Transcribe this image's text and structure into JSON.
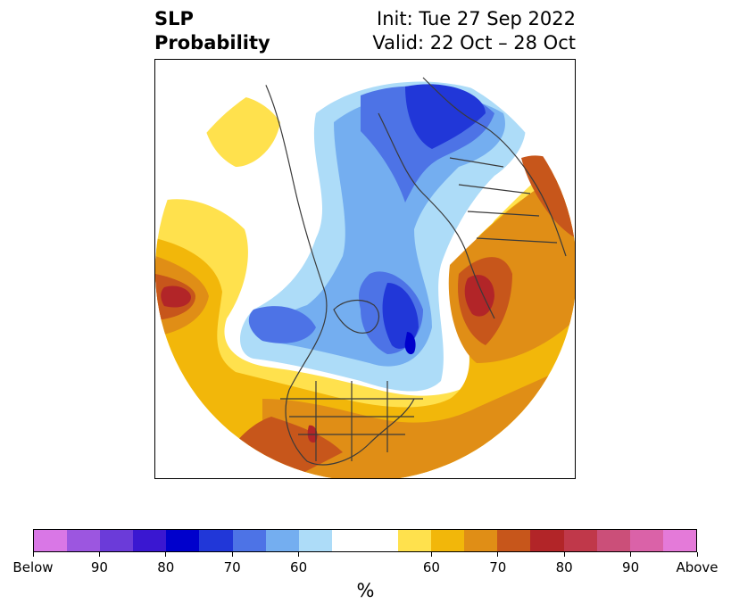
{
  "title": {
    "left_line1": "SLP",
    "left_line2": "Probability",
    "right_line1": "Init: Tue 27 Sep 2022",
    "right_line2": "Valid: 22 Oct – 28 Oct"
  },
  "colorbar": {
    "unit": "%",
    "colors": [
      "#d977e6",
      "#9c56e0",
      "#6b3bd9",
      "#3a17d1",
      "#0000cc",
      "#2137d8",
      "#4d73e6",
      "#74aef0",
      "#addcf8",
      "#ffffff",
      "#ffffff",
      "#ffe14d",
      "#f2b70a",
      "#e08e16",
      "#c7561b",
      "#b22528",
      "#c0384a",
      "#cb4f79",
      "#da62a8",
      "#e47ad9"
    ],
    "tick_labels": [
      "Below",
      "90",
      "80",
      "70",
      "60",
      "60",
      "70",
      "80",
      "90",
      "Above"
    ],
    "tick_fractions": [
      0,
      0.1,
      0.2,
      0.3,
      0.4,
      0.6,
      0.7,
      0.8,
      0.9,
      1.0
    ]
  }
}
